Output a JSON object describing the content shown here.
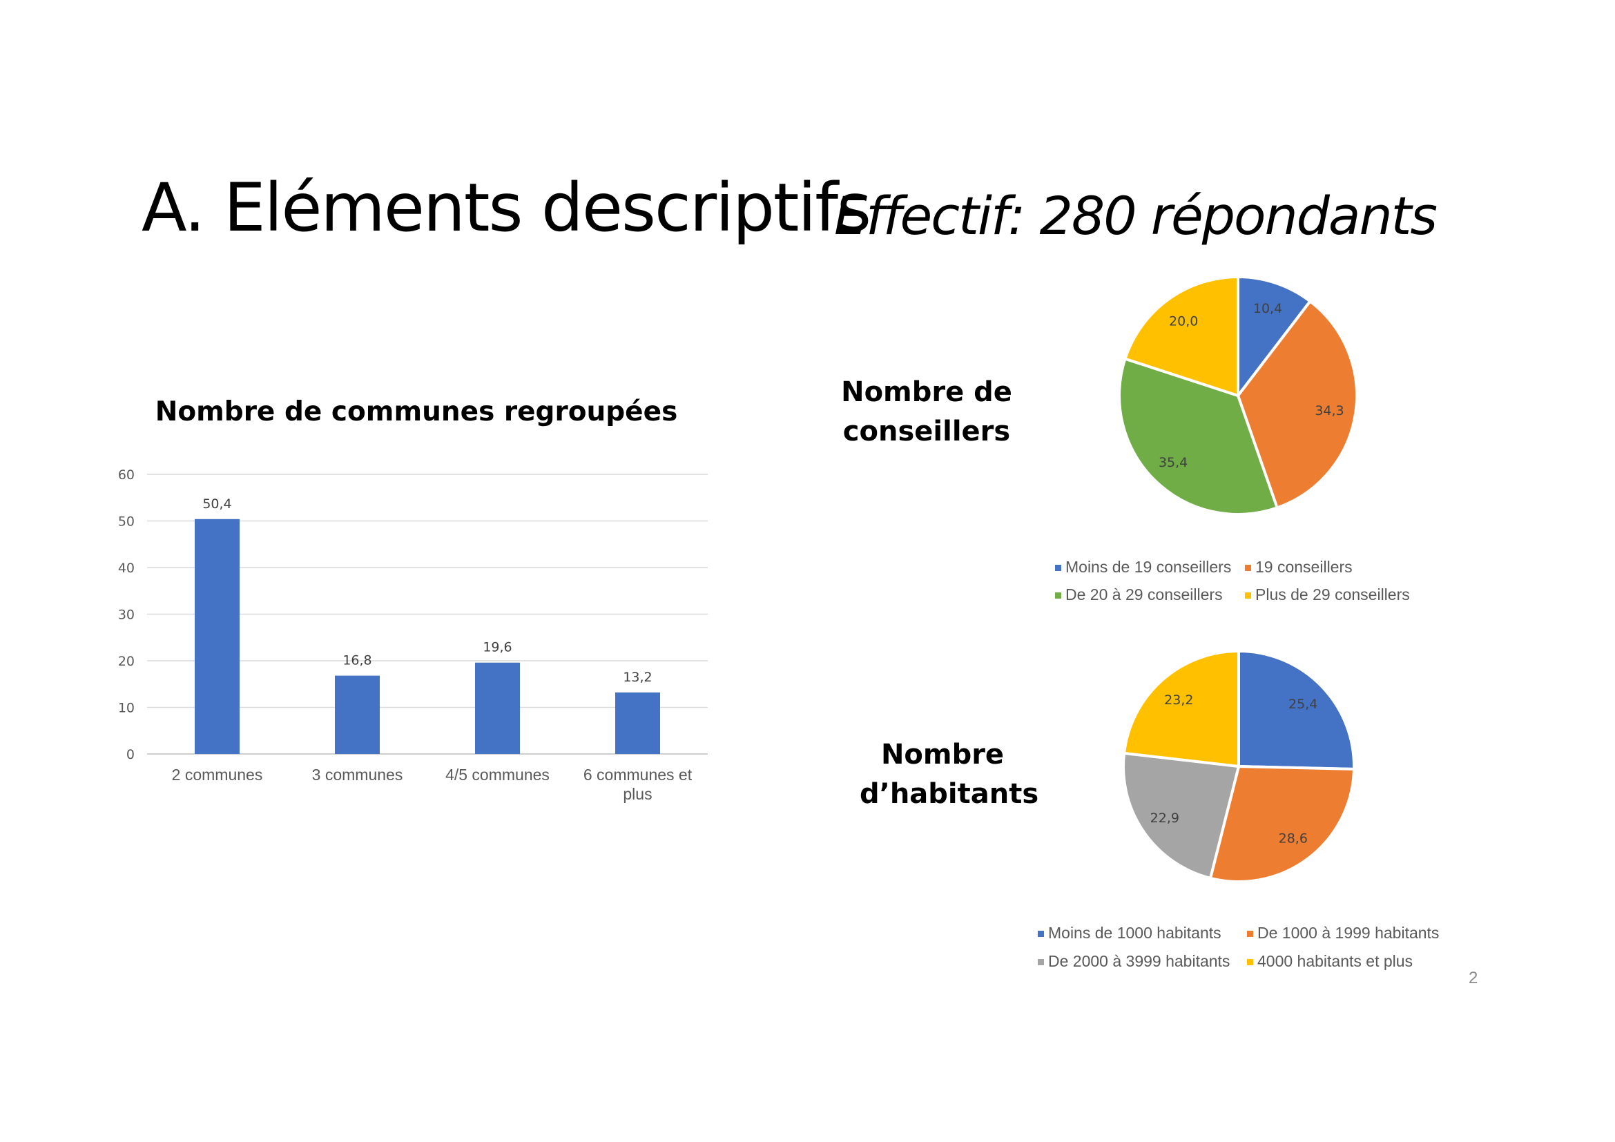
{
  "slide": {
    "title": "A. Eléments descriptifs",
    "subtitle": "Effectif: 280 répondants",
    "page_number": "2"
  },
  "chart_data": [
    {
      "type": "bar",
      "title": "Nombre de communes regroupées",
      "categories": [
        "2 communes",
        "3 communes",
        "4/5 communes",
        "6 communes et plus"
      ],
      "values": [
        50.4,
        16.8,
        19.6,
        13.2
      ],
      "data_labels": [
        "50,4",
        "16,8",
        "19,6",
        "13,2"
      ],
      "ylim": [
        0,
        60
      ],
      "yticks": [
        "0",
        "10",
        "20",
        "30",
        "40",
        "50",
        "60"
      ],
      "grid": true,
      "color": "#4472C4"
    },
    {
      "type": "pie",
      "title": "Nombre de conseillers",
      "labels": [
        "Moins de 19 conseillers",
        "19 conseillers",
        "De 20 à 29 conseillers",
        "Plus de 29 conseillers"
      ],
      "values": [
        10.4,
        34.3,
        35.4,
        20.0
      ],
      "data_labels": [
        "10,4",
        "34,3",
        "35,4",
        "20,0"
      ],
      "colors": [
        "#4472C4",
        "#ED7D31",
        "#70AD47",
        "#FFC000"
      ],
      "legend": "bottom"
    },
    {
      "type": "pie",
      "title": "Nombre d’habitants",
      "labels": [
        "Moins de 1000 habitants",
        "De 1000 à 1999 habitants",
        "De 2000 à 3999 habitants",
        "4000 habitants et plus"
      ],
      "values": [
        25.4,
        28.6,
        22.9,
        23.2
      ],
      "data_labels": [
        "25,4",
        "28,6",
        "22,9",
        "23,2"
      ],
      "colors": [
        "#4472C4",
        "#ED7D31",
        "#A5A5A5",
        "#FFC000"
      ],
      "legend": "bottom"
    }
  ]
}
